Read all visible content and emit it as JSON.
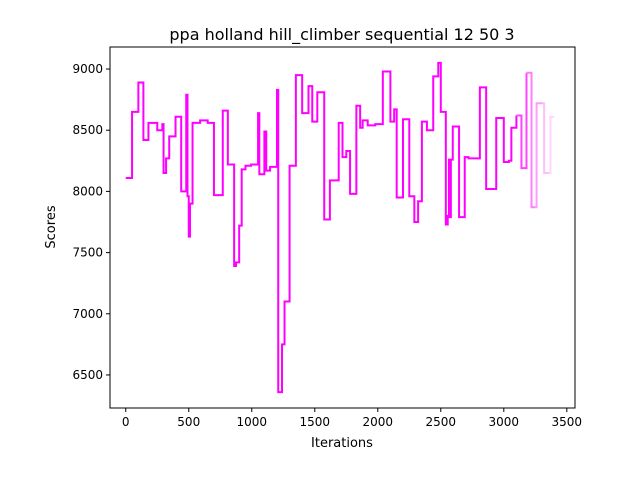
{
  "chart_data": {
    "type": "line",
    "title": "ppa holland hill_climber sequential 12 50 3",
    "xlabel": "Iterations",
    "ylabel": "Scores",
    "xlim": [
      -125,
      3565
    ],
    "ylim": [
      6230,
      9180
    ],
    "xticks": [
      0,
      500,
      1000,
      1500,
      2000,
      2500,
      3000,
      3500
    ],
    "yticks": [
      6500,
      7000,
      7500,
      8000,
      8500,
      9000
    ],
    "grid": false,
    "legend": "none",
    "line_style": "steps-post",
    "series": [
      {
        "color": "#ff00ff",
        "x": [
          0,
          50,
          100,
          140,
          180,
          250,
          290,
          300,
          320,
          345,
          395,
          440,
          480,
          490,
          500,
          510,
          530,
          590,
          650,
          700,
          770,
          810,
          860,
          875,
          900,
          920,
          950,
          995,
          1050,
          1060,
          1100,
          1115,
          1145,
          1200,
          1210,
          1240,
          1260,
          1300,
          1350,
          1400,
          1450,
          1480,
          1520,
          1575,
          1620,
          1690,
          1720,
          1750,
          1780,
          1830,
          1860,
          1880,
          1920,
          1980,
          2040,
          2100,
          2130,
          2150,
          2200,
          2250,
          2290,
          2320,
          2350,
          2390,
          2440,
          2480,
          2500,
          2540,
          2555,
          2565,
          2570,
          2580,
          2595,
          2645,
          2690,
          2720,
          2810,
          2860,
          2940,
          3000,
          3040,
          3060,
          3100
        ],
        "y": [
          8110,
          8650,
          8890,
          8420,
          8560,
          8500,
          8550,
          8150,
          8270,
          8450,
          8610,
          8000,
          8790,
          7960,
          7630,
          7900,
          8560,
          8580,
          8560,
          7970,
          8660,
          8220,
          7390,
          7420,
          7720,
          8180,
          8210,
          8220,
          8640,
          8140,
          8490,
          8170,
          8200,
          8830,
          6360,
          6750,
          7100,
          8210,
          8950,
          8640,
          8860,
          8570,
          8810,
          7770,
          8090,
          8560,
          8280,
          8330,
          7980,
          8700,
          8520,
          8580,
          8540,
          8550,
          8980,
          8570,
          8670,
          7950,
          8590,
          7960,
          7750,
          7920,
          8570,
          8500,
          8940,
          9050,
          8650,
          7730,
          7800,
          8260,
          7790,
          8260,
          8530,
          7790,
          8280,
          8270,
          8850,
          8020,
          8600,
          8240,
          8250,
          8520,
          8620
        ]
      },
      {
        "color": "#ff44ff",
        "x": [
          3100,
          3140,
          3180
        ],
        "y": [
          8620,
          8190,
          8970
        ]
      },
      {
        "color": "#ff7dff",
        "x": [
          3180,
          3220,
          3250
        ],
        "y": [
          8970,
          7870,
          7870
        ]
      },
      {
        "color": "#ff9cff",
        "x": [
          3250,
          3260,
          3310
        ],
        "y": [
          7870,
          8720,
          8720
        ]
      },
      {
        "color": "#ffbfff",
        "x": [
          3310,
          3320,
          3360
        ],
        "y": [
          8720,
          8150,
          8150
        ]
      },
      {
        "color": "#ffd6ff",
        "x": [
          3360,
          3370,
          3400
        ],
        "y": [
          8150,
          8610,
          8610
        ]
      }
    ]
  }
}
